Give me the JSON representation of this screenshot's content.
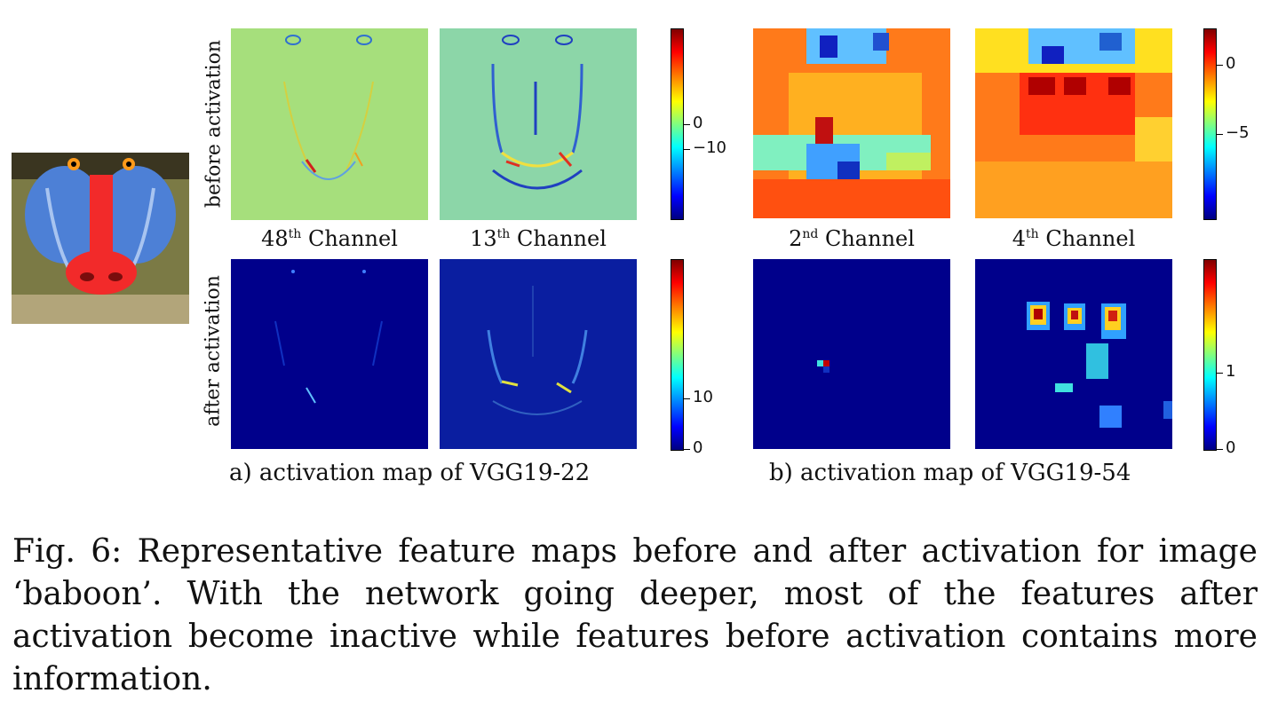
{
  "row_labels": {
    "before": "before activation",
    "after": "after activation"
  },
  "panel_a": {
    "channels": [
      {
        "ordinal": "48",
        "suffix": "th",
        "word": "Channel"
      },
      {
        "ordinal": "13",
        "suffix": "th",
        "word": "Channel"
      }
    ],
    "label": "a) activation map of  VGG19-22",
    "colorbar_before_ticks": [
      "0",
      "−10"
    ],
    "colorbar_after_ticks": [
      "10",
      "0"
    ]
  },
  "panel_b": {
    "channels": [
      {
        "ordinal": "2",
        "suffix": "nd",
        "word": "Channel"
      },
      {
        "ordinal": "4",
        "suffix": "th",
        "word": "Channel"
      }
    ],
    "label": "b) activation map of  VGG19-54",
    "colorbar_before_ticks": [
      "0",
      "−5"
    ],
    "colorbar_after_ticks": [
      "1",
      "0"
    ]
  },
  "caption": "Fig. 6: Representative feature maps before and after activation for image ‘baboon’. With the network going deeper, most of the features after activation become inactive while features before activation contains more information.",
  "colors": {
    "jet_dark_blue": "#00008b",
    "jet_green": "#80ff80",
    "jet_red": "#ff0000",
    "baboon_nose": "#ff3030",
    "baboon_cheek": "#4a7fd4"
  }
}
